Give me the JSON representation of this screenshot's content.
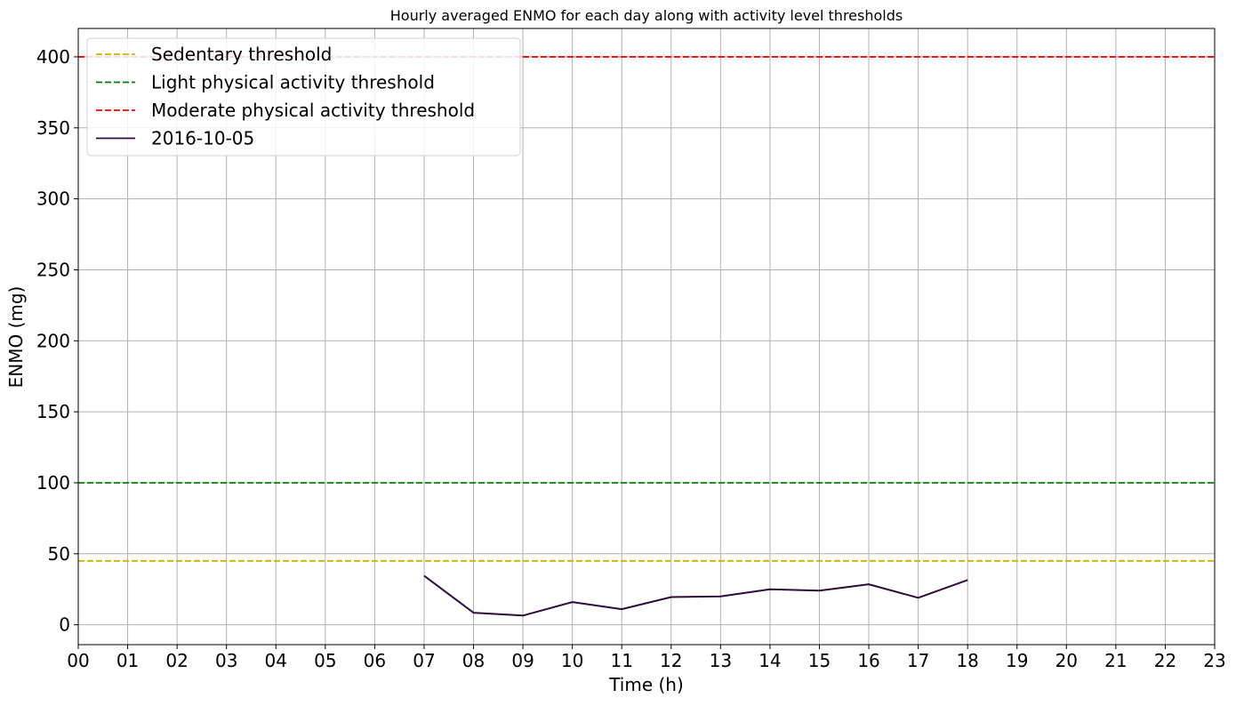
{
  "chart_data": {
    "type": "line",
    "title": "Hourly averaged ENMO for each day along with activity level thresholds",
    "xlabel": "Time (h)",
    "ylabel": "ENMO (mg)",
    "x_ticks": [
      "00",
      "01",
      "02",
      "03",
      "04",
      "05",
      "06",
      "07",
      "08",
      "09",
      "10",
      "11",
      "12",
      "13",
      "14",
      "15",
      "16",
      "17",
      "18",
      "19",
      "20",
      "21",
      "22",
      "23"
    ],
    "xlim": [
      0,
      23
    ],
    "y_ticks": [
      0,
      50,
      100,
      150,
      200,
      250,
      300,
      350,
      400
    ],
    "ylim": [
      -14,
      420
    ],
    "grid": true,
    "legend_position": "top-left",
    "thresholds": [
      {
        "name": "Sedentary threshold",
        "value": 45,
        "color": "#c8b400",
        "style": "dashed"
      },
      {
        "name": "Light physical activity threshold",
        "value": 100,
        "color": "#008000",
        "style": "dashed"
      },
      {
        "name": "Moderate physical activity threshold",
        "value": 400,
        "color": "#ff0000",
        "style": "dashed"
      }
    ],
    "series": [
      {
        "name": "2016-10-05",
        "color": "#2d0c3a",
        "x": [
          7,
          8,
          9,
          10,
          11,
          12,
          13,
          14,
          15,
          16,
          17,
          18
        ],
        "values": [
          34.5,
          8.5,
          6.5,
          16,
          11,
          19.5,
          20,
          25,
          24,
          28.5,
          19,
          31.5
        ]
      }
    ]
  }
}
